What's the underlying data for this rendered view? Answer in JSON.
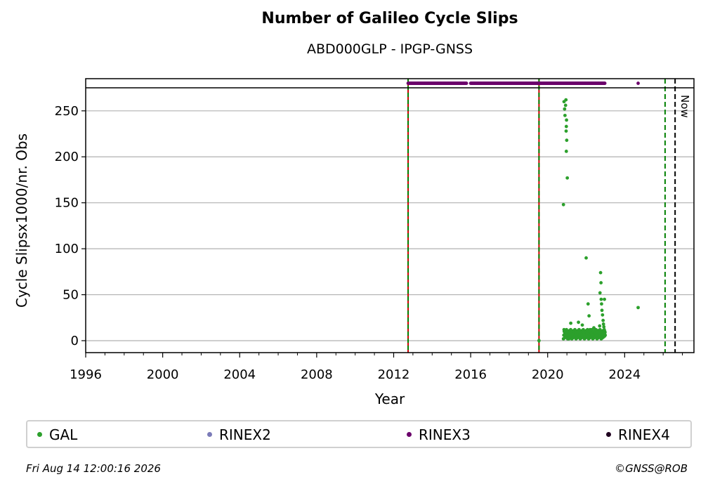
{
  "chart_data": {
    "type": "scatter",
    "title": "Number of Galileo Cycle Slips",
    "subtitle": "ABD000GLP - IPGP-GNSS",
    "xlabel": "Year",
    "ylabel": "Cycle Slipsx1000/nr. Obs",
    "xlim": [
      1996,
      2027.6
    ],
    "ylim": [
      -13,
      285
    ],
    "xticks": [
      1996,
      2000,
      2004,
      2008,
      2012,
      2016,
      2020,
      2024
    ],
    "yticks": [
      0,
      50,
      100,
      150,
      200,
      250
    ],
    "grid": "horizontal",
    "legend_position": "bottom",
    "now_label": "Now",
    "vertical_lines": [
      {
        "x": 2012.75,
        "style": "red-green-dashed"
      },
      {
        "x": 2019.55,
        "style": "red-green-dashed"
      },
      {
        "x": 2026.1,
        "style": "green-dashed"
      },
      {
        "x": 2026.62,
        "style": "black-dashed",
        "label": "Now"
      }
    ],
    "series": [
      {
        "name": "GAL",
        "color": "#2ca02c",
        "points": [
          [
            2019.55,
            0
          ],
          [
            2020.82,
            148
          ],
          [
            2020.85,
            260
          ],
          [
            2020.88,
            252
          ],
          [
            2020.9,
            245
          ],
          [
            2020.93,
            256
          ],
          [
            2020.95,
            262
          ],
          [
            2020.98,
            240
          ],
          [
            2020.97,
            233
          ],
          [
            2020.96,
            228
          ],
          [
            2020.99,
            218
          ],
          [
            2020.97,
            206
          ],
          [
            2021.02,
            177
          ],
          [
            2020.85,
            12
          ],
          [
            2020.9,
            8
          ],
          [
            2021.0,
            5
          ],
          [
            2021.1,
            2
          ],
          [
            2021.2,
            19
          ],
          [
            2021.3,
            4
          ],
          [
            2021.4,
            9
          ],
          [
            2021.5,
            3
          ],
          [
            2021.6,
            20
          ],
          [
            2021.7,
            7
          ],
          [
            2021.8,
            17
          ],
          [
            2021.9,
            5
          ],
          [
            2022.0,
            90
          ],
          [
            2022.05,
            10
          ],
          [
            2022.1,
            40
          ],
          [
            2022.15,
            27
          ],
          [
            2022.2,
            12
          ],
          [
            2022.3,
            6
          ],
          [
            2022.4,
            14
          ],
          [
            2022.5,
            4
          ],
          [
            2022.6,
            11
          ],
          [
            2022.7,
            16
          ],
          [
            2022.72,
            52
          ],
          [
            2022.75,
            74
          ],
          [
            2022.77,
            63
          ],
          [
            2022.78,
            45
          ],
          [
            2022.8,
            40
          ],
          [
            2022.82,
            33
          ],
          [
            2022.85,
            28
          ],
          [
            2022.88,
            22
          ],
          [
            2022.9,
            18
          ],
          [
            2022.92,
            15
          ],
          [
            2022.95,
            45
          ],
          [
            2022.97,
            10
          ],
          [
            2022.99,
            6
          ],
          [
            2024.7,
            36
          ]
        ]
      },
      {
        "name": "RINEX2",
        "color": "#7b7bb8",
        "points": []
      },
      {
        "name": "RINEX3",
        "color": "#6b006b",
        "segments": [
          [
            2012.75,
            2015.8
          ],
          [
            2016.0,
            2019.55
          ],
          [
            2019.55,
            2022.98
          ]
        ],
        "points_y": 280,
        "extra": [
          2024.7
        ]
      },
      {
        "name": "RINEX4",
        "color": "#200020",
        "points": []
      }
    ]
  },
  "legend": [
    {
      "label": "GAL",
      "color": "#2ca02c"
    },
    {
      "label": "RINEX2",
      "color": "#7b7bb8"
    },
    {
      "label": "RINEX3",
      "color": "#6b006b"
    },
    {
      "label": "RINEX4",
      "color": "#200020"
    }
  ],
  "footer": {
    "timestamp": "Fri Aug 14 12:00:16 2026",
    "copyright": "©GNSS@ROB"
  }
}
